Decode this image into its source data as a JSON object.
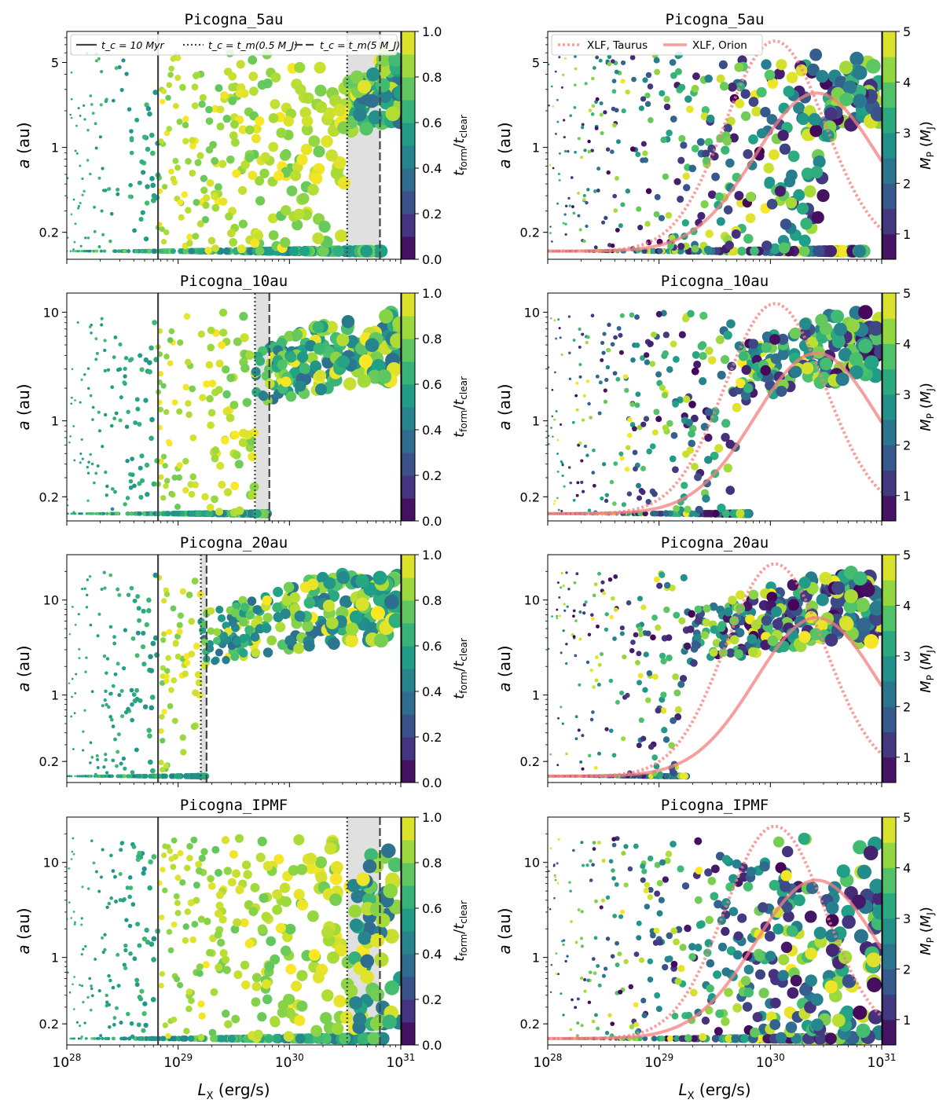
{
  "figure": {
    "xlabel": "L",
    "xlabel_sub": "X",
    "xlabel_unit": " (erg/s)",
    "ylabel": "a",
    "ylabel_unit": " (au)",
    "left_colorbar": {
      "label": "t_form/t_clear",
      "ticks": [
        "0.0",
        "0.2",
        "0.4",
        "0.6",
        "0.8",
        "1.0"
      ],
      "range": [
        0,
        1
      ]
    },
    "right_colorbar": {
      "label": "M_P (M_J)",
      "ticks": [
        "1",
        "2",
        "3",
        "4",
        "5"
      ],
      "range": [
        0.5,
        5
      ]
    },
    "legend_left": {
      "solid": "t_c = 10 Myr",
      "dotted": "t_c = t_m(0.5 M_J)",
      "dashed": "t_c = t_m(5 M_J)"
    },
    "legend_right": {
      "taurus": "XLF, Taurus",
      "orion": "XLF, Orion"
    },
    "colors": {
      "xlf": "#f47f7f",
      "vline": "#444444",
      "band": "#e0e0e0",
      "viridis": [
        "#fde725",
        "#a0da39",
        "#4ac16d",
        "#1fa187",
        "#277f8e",
        "#365c8d",
        "#46327e",
        "#440154"
      ]
    }
  },
  "chart_data": [
    {
      "type": "scatter",
      "title": "Picogna_5au",
      "panel": "left",
      "xscale": "log",
      "xlim": [
        1e+28,
        1e+31
      ],
      "xticks": [
        "10^28",
        "10^29",
        "10^30",
        "10^31"
      ],
      "yscale": "log",
      "ylim": [
        0.12,
        9
      ],
      "yticks": [
        0.2,
        1,
        5
      ],
      "ytick_labels": [
        "0.2",
        "1",
        "5"
      ],
      "color_by": "t_form/t_clear",
      "vlines": {
        "solid": 6.6e+28,
        "dotted": 3.3e+30,
        "dashed": 6.5e+30,
        "shaded": [
          3.3e+30,
          6.5e+30
        ]
      },
      "seed": 11,
      "floor_a": 0.14,
      "a_max": 6
    },
    {
      "type": "scatter",
      "title": "Picogna_5au",
      "panel": "right",
      "xscale": "log",
      "xlim": [
        1e+28,
        1e+31
      ],
      "xticks": [
        "10^28",
        "10^29",
        "10^30",
        "10^31"
      ],
      "yscale": "log",
      "ylim": [
        0.12,
        9
      ],
      "yticks": [
        0.2,
        1,
        5
      ],
      "ytick_labels": [
        "0.2",
        "1",
        "5"
      ],
      "color_by": "M_P",
      "xlf_taurus": {
        "peak_lx": 1.1e+30,
        "peak_a": 7.5,
        "base_a": 0.14
      },
      "xlf_orion": {
        "peak_lx": 2.6e+30,
        "peak_a": 2.8,
        "base_a": 0.14
      },
      "seed": 12,
      "floor_a": 0.14,
      "a_max": 6
    },
    {
      "type": "scatter",
      "title": "Picogna_10au",
      "panel": "left",
      "xscale": "log",
      "xlim": [
        1e+28,
        1e+31
      ],
      "xticks": [
        "10^28",
        "10^29",
        "10^30",
        "10^31"
      ],
      "yscale": "log",
      "ylim": [
        0.12,
        15
      ],
      "yticks": [
        0.2,
        1,
        10
      ],
      "ytick_labels": [
        "0.2",
        "1",
        "10"
      ],
      "color_by": "t_form/t_clear",
      "vlines": {
        "solid": 6.6e+28,
        "dotted": 4.9e+29,
        "dashed": 6.6e+29,
        "shaded": [
          4.9e+29,
          6.6e+29
        ]
      },
      "seed": 21,
      "floor_a": 0.14,
      "a_max": 10
    },
    {
      "type": "scatter",
      "title": "Picogna_10au",
      "panel": "right",
      "xscale": "log",
      "xlim": [
        1e+28,
        1e+31
      ],
      "xticks": [
        "10^28",
        "10^29",
        "10^30",
        "10^31"
      ],
      "yscale": "log",
      "ylim": [
        0.12,
        15
      ],
      "yticks": [
        0.2,
        1,
        10
      ],
      "ytick_labels": [
        "0.2",
        "1",
        "10"
      ],
      "color_by": "M_P",
      "xlf_taurus": {
        "peak_lx": 1.1e+30,
        "peak_a": 12,
        "base_a": 0.14
      },
      "xlf_orion": {
        "peak_lx": 2.6e+30,
        "peak_a": 4.2,
        "base_a": 0.14
      },
      "seed": 22,
      "floor_a": 0.14,
      "a_max": 10
    },
    {
      "type": "scatter",
      "title": "Picogna_20au",
      "panel": "left",
      "xscale": "log",
      "xlim": [
        1e+28,
        1e+31
      ],
      "xticks": [
        "10^28",
        "10^29",
        "10^30",
        "10^31"
      ],
      "yscale": "log",
      "ylim": [
        0.12,
        30
      ],
      "yticks": [
        0.2,
        1,
        10
      ],
      "ytick_labels": [
        "0.2",
        "1",
        "10"
      ],
      "color_by": "t_form/t_clear",
      "vlines": {
        "solid": 6.6e+28,
        "dotted": 1.6e+29,
        "dashed": 1.8e+29,
        "shaded": [
          1.6e+29,
          1.8e+29
        ]
      },
      "seed": 31,
      "floor_a": 0.14,
      "a_max": 20
    },
    {
      "type": "scatter",
      "title": "Picogna_20au",
      "panel": "right",
      "xscale": "log",
      "xlim": [
        1e+28,
        1e+31
      ],
      "xticks": [
        "10^28",
        "10^29",
        "10^30",
        "10^31"
      ],
      "yscale": "log",
      "ylim": [
        0.12,
        30
      ],
      "yticks": [
        0.2,
        1,
        10
      ],
      "ytick_labels": [
        "0.2",
        "1",
        "10"
      ],
      "color_by": "M_P",
      "xlf_taurus": {
        "peak_lx": 1.1e+30,
        "peak_a": 24,
        "base_a": 0.14
      },
      "xlf_orion": {
        "peak_lx": 2.6e+30,
        "peak_a": 6.5,
        "base_a": 0.14
      },
      "seed": 32,
      "floor_a": 0.14,
      "a_max": 20
    },
    {
      "type": "scatter",
      "title": "Picogna_IPMF",
      "panel": "left",
      "xscale": "log",
      "xlim": [
        1e+28,
        1e+31
      ],
      "xticks": [
        "10^28",
        "10^29",
        "10^30",
        "10^31"
      ],
      "yscale": "log",
      "ylim": [
        0.12,
        30
      ],
      "yticks": [
        0.2,
        1,
        10
      ],
      "ytick_labels": [
        "0.2",
        "1",
        "10"
      ],
      "color_by": "t_form/t_clear",
      "vlines": {
        "solid": 6.6e+28,
        "dotted": 3.3e+30,
        "dashed": 6.5e+30,
        "shaded": [
          3.3e+30,
          6.5e+30
        ]
      },
      "seed": 41,
      "floor_a": 0.14,
      "a_max": 18
    },
    {
      "type": "scatter",
      "title": "Picogna_IPMF",
      "panel": "right",
      "xscale": "log",
      "xlim": [
        1e+28,
        1e+31
      ],
      "xticks": [
        "10^28",
        "10^29",
        "10^30",
        "10^31"
      ],
      "yscale": "log",
      "ylim": [
        0.12,
        30
      ],
      "yticks": [
        0.2,
        1,
        10
      ],
      "ytick_labels": [
        "0.2",
        "1",
        "10"
      ],
      "color_by": "M_P",
      "xlf_taurus": {
        "peak_lx": 1.1e+30,
        "peak_a": 24,
        "base_a": 0.14
      },
      "xlf_orion": {
        "peak_lx": 2.6e+30,
        "peak_a": 6.5,
        "base_a": 0.14
      },
      "seed": 42,
      "floor_a": 0.14,
      "a_max": 18
    }
  ]
}
